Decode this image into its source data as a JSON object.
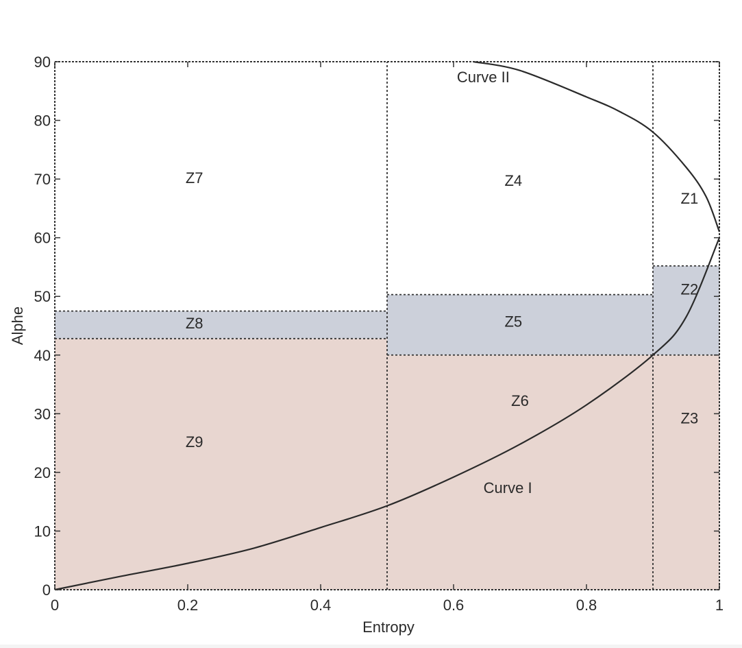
{
  "chart_data": {
    "type": "area",
    "xlabel": "Entropy",
    "ylabel": "Alphe",
    "xlim": [
      0,
      1
    ],
    "ylim": [
      0,
      90
    ],
    "grid": false,
    "x_ticks": [
      {
        "value": 0,
        "label": "0"
      },
      {
        "value": 0.2,
        "label": "0.2"
      },
      {
        "value": 0.4,
        "label": "0.4"
      },
      {
        "value": 0.6,
        "label": "0.6"
      },
      {
        "value": 0.8,
        "label": "0.8"
      },
      {
        "value": 1,
        "label": "1"
      }
    ],
    "y_ticks": [
      {
        "value": 0,
        "label": "0"
      },
      {
        "value": 10,
        "label": "10"
      },
      {
        "value": 20,
        "label": "20"
      },
      {
        "value": 30,
        "label": "30"
      },
      {
        "value": 40,
        "label": "40"
      },
      {
        "value": 50,
        "label": "50"
      },
      {
        "value": 60,
        "label": "60"
      },
      {
        "value": 70,
        "label": "70"
      },
      {
        "value": 80,
        "label": "80"
      },
      {
        "value": 90,
        "label": "90"
      }
    ],
    "colors": {
      "pink_zone": "#e8d6d0",
      "blue_zone": "#ccd0da",
      "curve": "#2a2a2a",
      "boundary": "#333333"
    },
    "regions": [
      {
        "name": "Z7",
        "x": [
          0,
          0.5
        ],
        "y": [
          47.5,
          90
        ],
        "fill": "none",
        "label_at": [
          0.21,
          70
        ]
      },
      {
        "name": "Z8",
        "x": [
          0,
          0.5
        ],
        "y": [
          42.8,
          47.5
        ],
        "fill": "blue_zone",
        "label_at": [
          0.21,
          45.2
        ]
      },
      {
        "name": "Z9",
        "x": [
          0,
          0.5
        ],
        "y": [
          0,
          42.8
        ],
        "fill": "pink_zone",
        "label_at": [
          0.21,
          25
        ]
      },
      {
        "name": "Z4",
        "x": [
          0.5,
          0.9
        ],
        "y": [
          50.3,
          90
        ],
        "fill": "none",
        "label_at": [
          0.69,
          69.5
        ]
      },
      {
        "name": "Z5",
        "x": [
          0.5,
          0.9
        ],
        "y": [
          40,
          50.3
        ],
        "fill": "blue_zone",
        "label_at": [
          0.69,
          45.5
        ]
      },
      {
        "name": "Z6",
        "x": [
          0.5,
          0.9
        ],
        "y": [
          0,
          40
        ],
        "fill": "pink_zone",
        "label_at": [
          0.7,
          32
        ]
      },
      {
        "name": "Z1",
        "x": [
          0.9,
          1
        ],
        "y": [
          55.2,
          90
        ],
        "fill": "none",
        "label_at": [
          0.955,
          66.5
        ]
      },
      {
        "name": "Z2",
        "x": [
          0.9,
          1
        ],
        "y": [
          40,
          55.2
        ],
        "fill": "blue_zone",
        "label_at": [
          0.955,
          51
        ]
      },
      {
        "name": "Z3",
        "x": [
          0.9,
          1
        ],
        "y": [
          0,
          40
        ],
        "fill": "pink_zone",
        "label_at": [
          0.955,
          29
        ]
      }
    ],
    "series": [
      {
        "label_text": "Curve I",
        "label_at": [
          0.645,
          16.5
        ],
        "x": [
          0,
          0.1,
          0.2,
          0.3,
          0.4,
          0.5,
          0.6,
          0.7,
          0.8,
          0.9,
          0.95,
          1.0
        ],
        "y": [
          0,
          2.3,
          4.5,
          7.1,
          10.6,
          14.3,
          19.2,
          24.8,
          31.5,
          40,
          46.5,
          60
        ]
      },
      {
        "label_text": "Curve II",
        "label_at": [
          0.605,
          86.5
        ],
        "x": [
          0.63,
          0.7,
          0.8,
          0.85,
          0.9,
          0.95,
          0.98,
          1.0
        ],
        "y": [
          90,
          88.5,
          84,
          81.5,
          78,
          72,
          67,
          61
        ]
      }
    ]
  }
}
